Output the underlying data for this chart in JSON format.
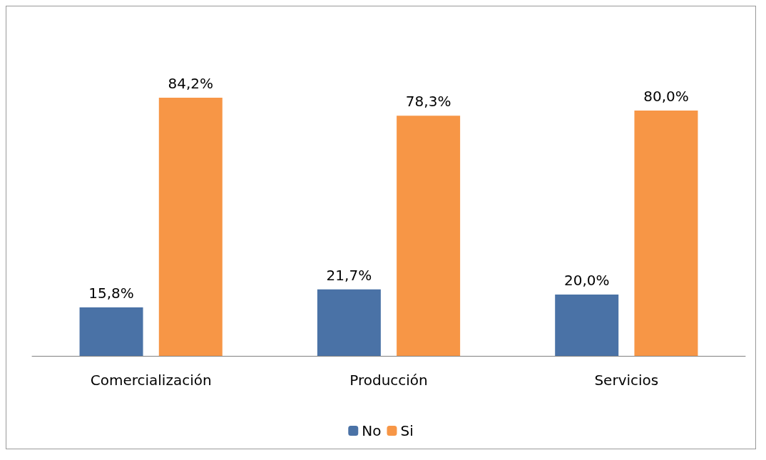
{
  "chart_data": {
    "type": "bar",
    "categories": [
      "Comercialización",
      "Producción",
      "Servicios"
    ],
    "series": [
      {
        "name": "No",
        "color": "#4a72a6",
        "values": [
          15.8,
          21.7,
          20.0
        ],
        "value_labels": [
          "15,8%",
          "21,7%",
          "20,0%"
        ]
      },
      {
        "name": "Si",
        "color": "#f79646",
        "values": [
          84.2,
          78.3,
          80.0
        ],
        "value_labels": [
          "84,2%",
          "78,3%",
          "80,0%"
        ]
      }
    ],
    "legend": "bottom",
    "grid": false
  }
}
